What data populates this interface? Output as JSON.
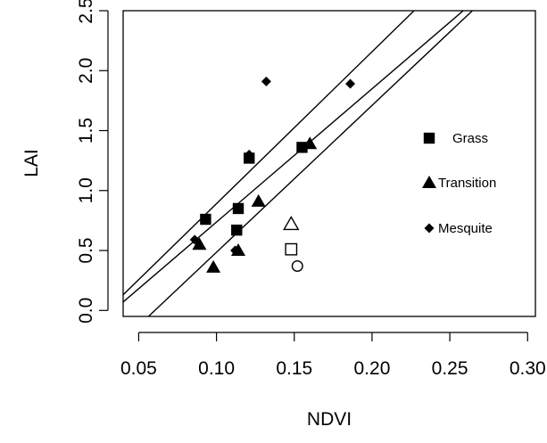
{
  "chart_data": {
    "type": "scatter",
    "title": "",
    "xlabel": "NDVI",
    "ylabel": "LAI",
    "xlim": [
      0.04,
      0.305
    ],
    "ylim": [
      -0.05,
      2.5
    ],
    "x_ticks": [
      "0.05",
      "0.10",
      "0.15",
      "0.20",
      "0.25",
      "0.30"
    ],
    "y_ticks": [
      "0.0",
      "0.5",
      "1.0",
      "1.5",
      "2.0",
      "2.5"
    ],
    "grid": false,
    "legend_position": "right",
    "series": [
      {
        "name": "Grass",
        "marker": "filled-square",
        "points": [
          {
            "x": 0.093,
            "y": 0.76
          },
          {
            "x": 0.113,
            "y": 0.67
          },
          {
            "x": 0.114,
            "y": 0.85
          },
          {
            "x": 0.121,
            "y": 1.27
          },
          {
            "x": 0.155,
            "y": 1.36
          }
        ]
      },
      {
        "name": "Transition",
        "marker": "filled-triangle",
        "points": [
          {
            "x": 0.089,
            "y": 0.55
          },
          {
            "x": 0.098,
            "y": 0.36
          },
          {
            "x": 0.114,
            "y": 0.5
          },
          {
            "x": 0.127,
            "y": 0.91
          },
          {
            "x": 0.16,
            "y": 1.39
          }
        ]
      },
      {
        "name": "Mesquite",
        "marker": "filled-diamond",
        "points": [
          {
            "x": 0.086,
            "y": 0.59
          },
          {
            "x": 0.112,
            "y": 0.5
          },
          {
            "x": 0.121,
            "y": 1.3
          },
          {
            "x": 0.132,
            "y": 1.91
          },
          {
            "x": 0.186,
            "y": 1.89
          }
        ]
      },
      {
        "name": "",
        "marker": "open-triangle",
        "points": [
          {
            "x": 0.148,
            "y": 0.72
          }
        ]
      },
      {
        "name": "",
        "marker": "open-square",
        "points": [
          {
            "x": 0.148,
            "y": 0.51
          }
        ]
      },
      {
        "name": "",
        "marker": "open-circle",
        "points": [
          {
            "x": 0.152,
            "y": 0.37
          }
        ]
      }
    ],
    "lines": [
      {
        "x1": 0.04,
        "y1": 0.13,
        "x2": 0.227,
        "y2": 2.5
      },
      {
        "x1": 0.04,
        "y1": 0.07,
        "x2": 0.2586,
        "y2": 2.5
      },
      {
        "x1": 0.0563,
        "y1": -0.05,
        "x2": 0.2645,
        "y2": 2.5
      }
    ],
    "legend": [
      {
        "label": "Grass",
        "marker": "filled-square"
      },
      {
        "label": "Transition",
        "marker": "filled-triangle"
      },
      {
        "label": "Mesquite",
        "marker": "filled-diamond"
      }
    ]
  }
}
